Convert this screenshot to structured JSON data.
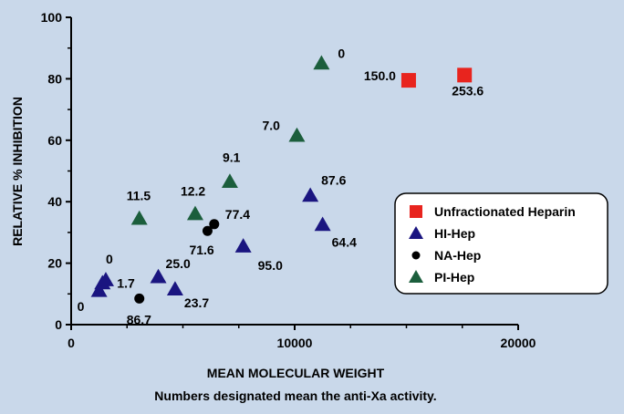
{
  "chart_data": {
    "type": "scatter",
    "xlabel": "MEAN MOLECULAR WEIGHT",
    "subtitle": "Numbers designated mean the anti-Xa activity.",
    "ylabel": "RELATIVE % INHIBITION",
    "xlim": [
      0,
      20000
    ],
    "ylim": [
      0,
      100
    ],
    "xticks": [
      "0",
      "10000",
      "20000"
    ],
    "yticks": [
      "0",
      "20",
      "40",
      "60",
      "80",
      "100"
    ],
    "legend_position": "right",
    "series": [
      {
        "name": "Unfractionated Heparin",
        "marker": "square",
        "color": "#e8241e",
        "points": [
          {
            "x": 15100,
            "y": 79.5,
            "label": "150.0"
          },
          {
            "x": 17600,
            "y": 81.2,
            "label": "253.6"
          }
        ]
      },
      {
        "name": "HI-Hep",
        "marker": "triangle",
        "color": "#1a1580",
        "points": [
          {
            "x": 1250,
            "y": 11.0,
            "label": "0"
          },
          {
            "x": 1400,
            "y": 13.5,
            "label": "1.7"
          },
          {
            "x": 1550,
            "y": 14.5,
            "label": "0"
          },
          {
            "x": 3900,
            "y": 15.5,
            "label": "25.0"
          },
          {
            "x": 4650,
            "y": 11.5,
            "label": "23.7"
          },
          {
            "x": 7700,
            "y": 25.5,
            "label": "95.0"
          },
          {
            "x": 10700,
            "y": 42.0,
            "label": "87.6"
          },
          {
            "x": 11250,
            "y": 32.5,
            "label": "64.4"
          }
        ]
      },
      {
        "name": "NA-Hep",
        "marker": "circle",
        "color": "#000000",
        "points": [
          {
            "x": 3050,
            "y": 8.5,
            "label": "86.7"
          },
          {
            "x": 6100,
            "y": 30.5,
            "label": "71.6"
          },
          {
            "x": 6400,
            "y": 32.7,
            "label": "77.4"
          }
        ]
      },
      {
        "name": "PI-Hep",
        "marker": "triangle",
        "color": "#1b5e3c",
        "points": [
          {
            "x": 3050,
            "y": 34.5,
            "label": "11.5"
          },
          {
            "x": 5550,
            "y": 36.0,
            "label": "12.2"
          },
          {
            "x": 7100,
            "y": 46.5,
            "label": "9.1"
          },
          {
            "x": 10100,
            "y": 61.5,
            "label": "7.0"
          },
          {
            "x": 11200,
            "y": 85.0,
            "label": "0"
          }
        ]
      }
    ]
  }
}
